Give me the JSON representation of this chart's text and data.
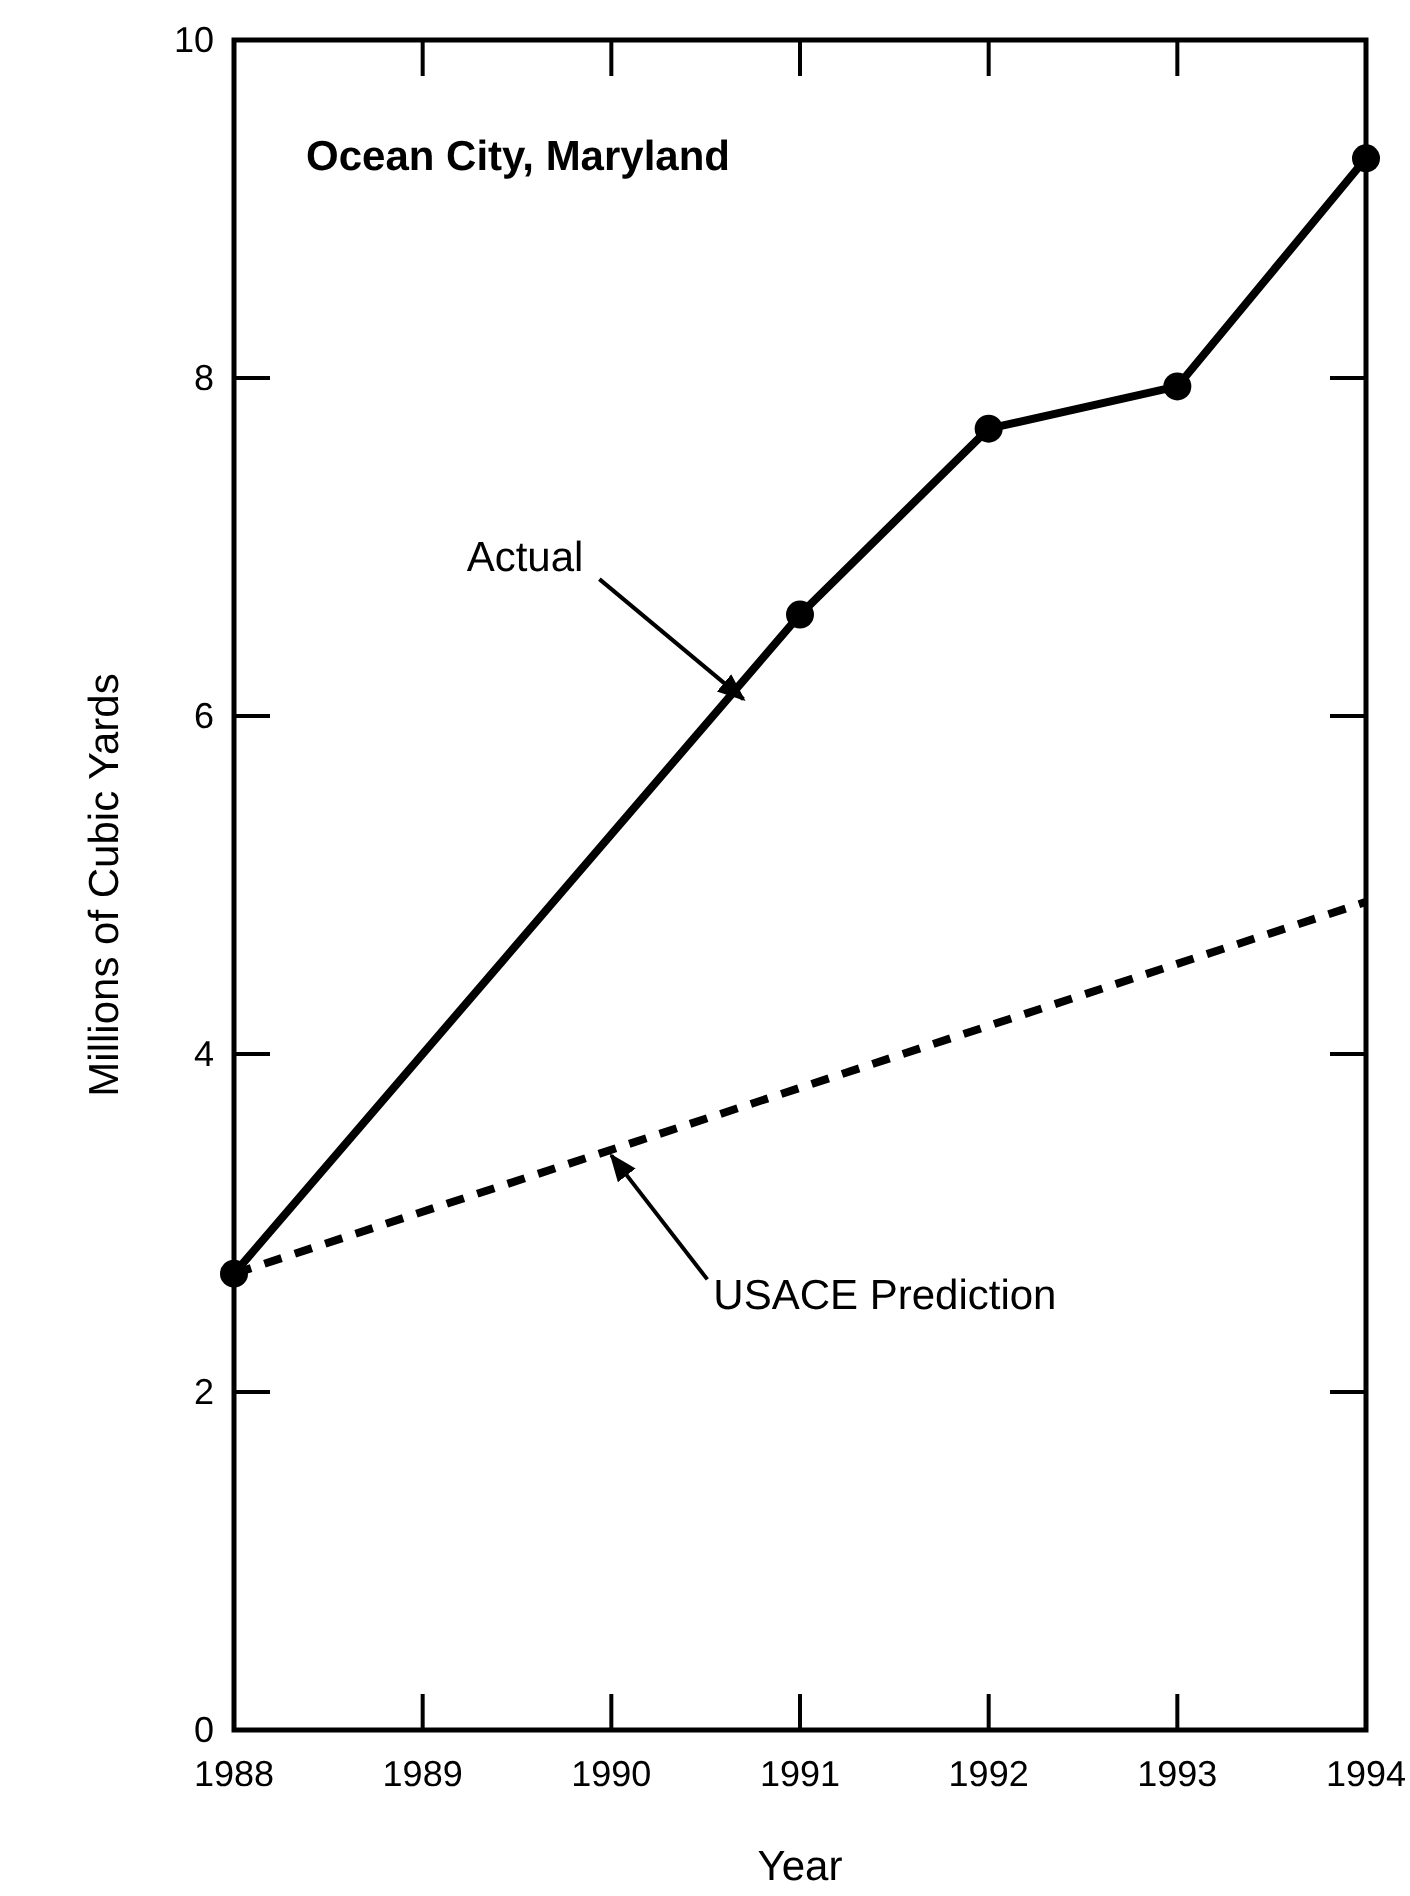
{
  "chart_data": {
    "type": "line",
    "title": "Ocean City, Maryland",
    "xlabel": "Year",
    "ylabel": "Millions of Cubic Yards",
    "xlim": [
      1988,
      1994
    ],
    "xticks": [
      1988,
      1989,
      1990,
      1991,
      1992,
      1993,
      1994
    ],
    "ylim": [
      0,
      10
    ],
    "yticks": [
      0,
      2,
      4,
      6,
      8,
      10
    ],
    "grid": false,
    "series": [
      {
        "color": "#000000",
        "marker": "circle",
        "line_style": "solid",
        "x": [
          1988,
          1991,
          1992,
          1993,
          1994
        ],
        "values": [
          2.7,
          6.6,
          7.7,
          7.95,
          9.3
        ]
      },
      {
        "color": "#000000",
        "marker": "none",
        "line_style": "dashed",
        "x": [
          1988,
          1994
        ],
        "values": [
          2.7,
          4.9
        ]
      }
    ],
    "annotations": [
      {
        "text": "Actual",
        "x": 1990.7,
        "y": 6.1
      },
      {
        "text": "USACE Prediction",
        "x": 1990,
        "y": 3.4
      }
    ]
  }
}
